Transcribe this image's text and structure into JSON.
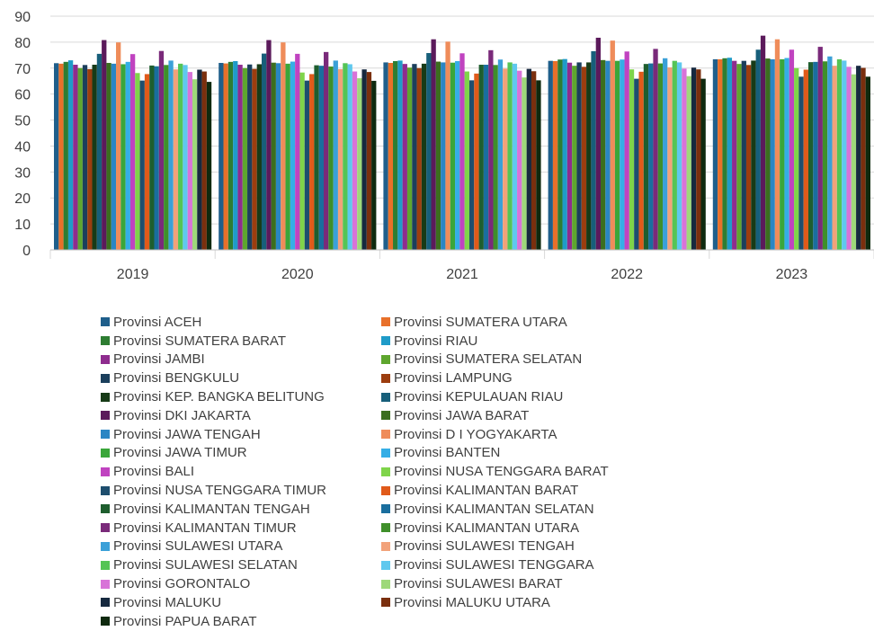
{
  "chart_data": {
    "type": "bar",
    "categories": [
      "2019",
      "2020",
      "2021",
      "2022",
      "2023"
    ],
    "ylim": [
      0,
      90
    ],
    "yticks": [
      0,
      10,
      20,
      30,
      40,
      50,
      60,
      70,
      80,
      90
    ],
    "grid": true,
    "legend_position": "bottom",
    "series": [
      {
        "name": "Provinsi ACEH",
        "color": "#1f5f8b",
        "values": [
          71.9,
          72.0,
          72.2,
          72.8,
          73.4
        ]
      },
      {
        "name": "Provinsi SUMATERA UTARA",
        "color": "#e8702a",
        "values": [
          71.7,
          71.8,
          72.0,
          72.7,
          73.4
        ]
      },
      {
        "name": "Provinsi SUMATERA BARAT",
        "color": "#2e7d32",
        "values": [
          72.4,
          72.4,
          72.7,
          73.3,
          73.8
        ]
      },
      {
        "name": "Provinsi RIAU",
        "color": "#1f9bc8",
        "values": [
          73.0,
          72.7,
          72.9,
          73.5,
          74.0
        ]
      },
      {
        "name": "Provinsi JAMBI",
        "color": "#8e2c8e",
        "values": [
          71.3,
          71.3,
          71.6,
          72.1,
          72.8
        ]
      },
      {
        "name": "Provinsi SUMATERA SELATAN",
        "color": "#5ea62e",
        "values": [
          70.0,
          70.0,
          70.2,
          70.9,
          71.6
        ]
      },
      {
        "name": "Provinsi BENGKULU",
        "color": "#1b3f5c",
        "values": [
          71.2,
          71.4,
          71.6,
          72.2,
          72.8
        ]
      },
      {
        "name": "Provinsi LAMPUNG",
        "color": "#9c3d0f",
        "values": [
          69.6,
          69.7,
          70.0,
          70.5,
          71.2
        ]
      },
      {
        "name": "Provinsi KEP. BANGKA BELITUNG",
        "color": "#173b17",
        "values": [
          71.3,
          71.5,
          71.7,
          72.2,
          72.9
        ]
      },
      {
        "name": "Provinsi KEPULAUAN RIAU",
        "color": "#175f7a",
        "values": [
          75.5,
          75.6,
          75.8,
          76.5,
          77.1
        ]
      },
      {
        "name": "Provinsi DKI JAKARTA",
        "color": "#5b1a5b",
        "values": [
          80.8,
          80.8,
          81.1,
          81.7,
          82.5
        ]
      },
      {
        "name": "Provinsi JAWA BARAT",
        "color": "#3b6e1f",
        "values": [
          72.0,
          72.1,
          72.5,
          73.1,
          73.7
        ]
      },
      {
        "name": "Provinsi JAWA TENGAH",
        "color": "#2a86c4",
        "values": [
          71.7,
          71.9,
          72.2,
          72.8,
          73.4
        ]
      },
      {
        "name": "Provinsi D I YOGYAKARTA",
        "color": "#ef8c5a",
        "values": [
          79.9,
          79.9,
          80.2,
          80.6,
          81.1
        ]
      },
      {
        "name": "Provinsi JAWA TIMUR",
        "color": "#3aa63a",
        "values": [
          71.5,
          71.7,
          72.1,
          72.8,
          73.4
        ]
      },
      {
        "name": "Provinsi BANTEN",
        "color": "#35aee6",
        "values": [
          72.4,
          72.5,
          72.7,
          73.3,
          73.9
        ]
      },
      {
        "name": "Provinsi BALI",
        "color": "#c043c0",
        "values": [
          75.4,
          75.5,
          75.7,
          76.4,
          77.1
        ]
      },
      {
        "name": "Provinsi NUSA TENGGARA BARAT",
        "color": "#7fd44a",
        "values": [
          68.1,
          68.3,
          68.7,
          69.5,
          70.0
        ]
      },
      {
        "name": "Provinsi NUSA TENGGARA TIMUR",
        "color": "#1e4e6e",
        "values": [
          65.2,
          65.2,
          65.3,
          65.9,
          66.7
        ]
      },
      {
        "name": "Provinsi KALIMANTAN BARAT",
        "color": "#e05a1a",
        "values": [
          67.7,
          67.7,
          67.9,
          68.6,
          69.4
        ]
      },
      {
        "name": "Provinsi KALIMANTAN TENGAH",
        "color": "#1e5e2e",
        "values": [
          71.0,
          71.1,
          71.3,
          71.6,
          72.3
        ]
      },
      {
        "name": "Provinsi KALIMANTAN SELATAN",
        "color": "#1a6e9e",
        "values": [
          70.7,
          70.9,
          71.3,
          71.8,
          72.4
        ]
      },
      {
        "name": "Provinsi KALIMANTAN TIMUR",
        "color": "#7a2a7a",
        "values": [
          76.6,
          76.2,
          76.9,
          77.4,
          78.2
        ]
      },
      {
        "name": "Provinsi KALIMANTAN UTARA",
        "color": "#3f8f2a",
        "values": [
          71.2,
          70.6,
          71.2,
          71.8,
          72.6
        ]
      },
      {
        "name": "Provinsi SULAWESI UTARA",
        "color": "#3ba0d8",
        "values": [
          72.9,
          72.9,
          73.3,
          73.8,
          74.5
        ]
      },
      {
        "name": "Provinsi SULAWESI TENGAH",
        "color": "#f2a27a",
        "values": [
          69.5,
          69.6,
          69.8,
          70.3,
          70.9
        ]
      },
      {
        "name": "Provinsi SULAWESI SELATAN",
        "color": "#55c455",
        "values": [
          71.7,
          71.9,
          72.2,
          72.8,
          73.4
        ]
      },
      {
        "name": "Provinsi SULAWESI TENGGARA",
        "color": "#5fc8ee",
        "values": [
          71.2,
          71.5,
          71.7,
          72.2,
          72.9
        ]
      },
      {
        "name": "Provinsi GORONTALO",
        "color": "#d873d8",
        "values": [
          68.5,
          68.7,
          69.0,
          69.8,
          70.5
        ]
      },
      {
        "name": "Provinsi SULAWESI BARAT",
        "color": "#9ed87a",
        "values": [
          65.7,
          66.1,
          66.4,
          66.9,
          67.6
        ]
      },
      {
        "name": "Provinsi MALUKU",
        "color": "#16293f",
        "values": [
          69.4,
          69.5,
          69.7,
          70.2,
          70.9
        ]
      },
      {
        "name": "Provinsi MALUKU UTARA",
        "color": "#7a2f0e",
        "values": [
          68.7,
          68.5,
          68.8,
          69.5,
          70.1
        ]
      },
      {
        "name": "Provinsi PAPUA BARAT",
        "color": "#0f2a0f",
        "values": [
          64.7,
          65.1,
          65.3,
          65.9,
          66.7
        ]
      }
    ]
  }
}
